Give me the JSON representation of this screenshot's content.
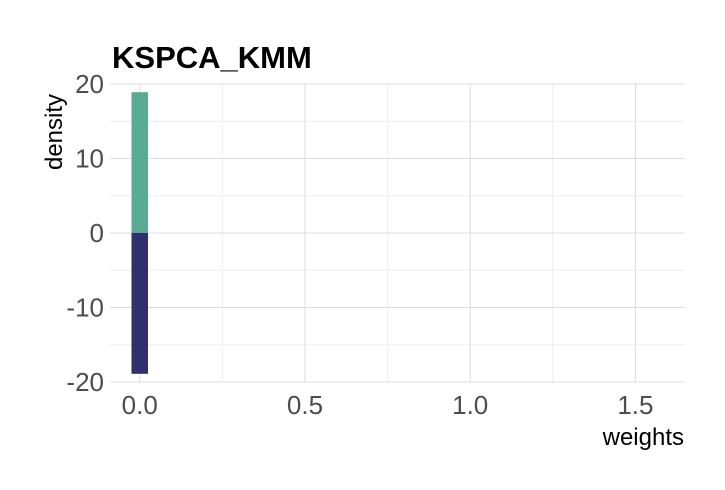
{
  "chart_data": {
    "type": "bar",
    "title": "KSPCA_KMM",
    "xlabel": "weights",
    "ylabel": "density",
    "xlim": [
      -0.09,
      1.65
    ],
    "ylim": [
      -20,
      20
    ],
    "xticks": [
      0.0,
      0.5,
      1.0,
      1.5
    ],
    "xtick_labels": [
      "0.0",
      "0.5",
      "1.0",
      "1.5"
    ],
    "yticks": [
      -20,
      -10,
      0,
      10,
      20
    ],
    "ytick_labels": [
      "-20",
      "-10",
      "0",
      "10",
      "20"
    ],
    "grid": true,
    "bin_width": 0.05,
    "series": [
      {
        "color": "#5aaa93",
        "bars": [
          {
            "x": 0.0,
            "value": 18.9
          }
        ]
      },
      {
        "color": "#31306e",
        "bars": [
          {
            "x": 0.0,
            "value": -18.9
          }
        ]
      }
    ]
  }
}
